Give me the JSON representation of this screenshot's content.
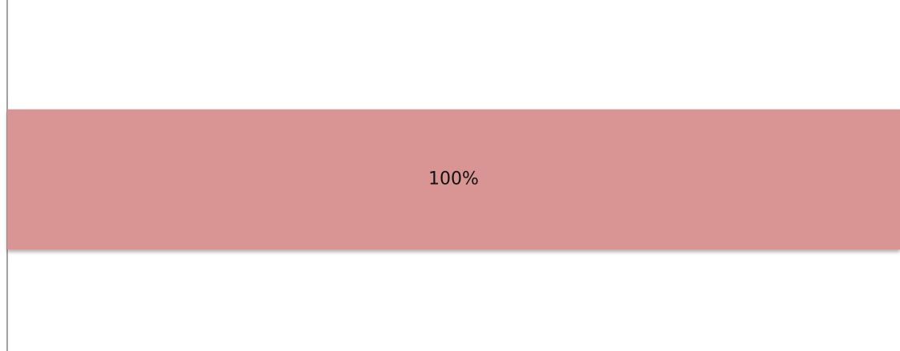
{
  "chart_data": {
    "type": "bar",
    "orientation": "horizontal",
    "categories": [
      null
    ],
    "values": [
      100
    ],
    "value_labels": [
      "100%"
    ],
    "color": "#d99594",
    "xlim": [
      0,
      100
    ]
  }
}
